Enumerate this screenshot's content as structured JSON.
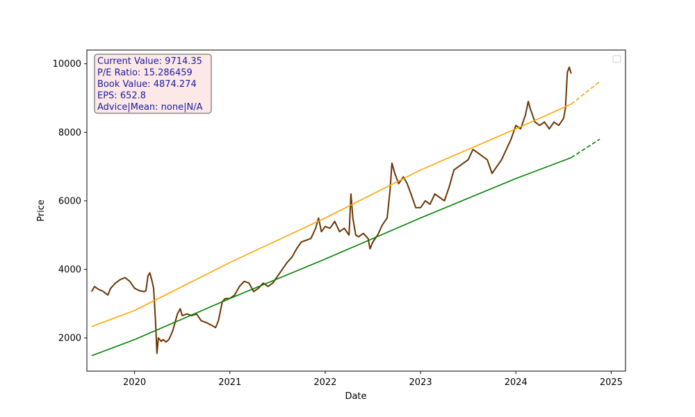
{
  "chart_data": {
    "type": "line",
    "xlabel": "Date",
    "ylabel": "Price",
    "xlim": [
      2019.5,
      2025.15
    ],
    "ylim": [
      1030,
      10400
    ],
    "x_ticks": [
      2020,
      2021,
      2022,
      2023,
      2024,
      2025
    ],
    "x_tick_labels": [
      "2020",
      "2021",
      "2022",
      "2023",
      "2024",
      "2025"
    ],
    "y_ticks": [
      2000,
      4000,
      6000,
      8000,
      10000
    ],
    "y_tick_labels": [
      "2000",
      "4000",
      "6000",
      "8000",
      "10000"
    ],
    "grid": false,
    "legend": "empty box, top-right",
    "info_box": {
      "lines": [
        "Current Value: 9714.35",
        "P/E Ratio: 15.286459",
        "Book Value: 4874.274",
        "EPS: 652.8",
        "Advice|Mean: none|N/A"
      ],
      "text_color": "#1a1aa0",
      "background": "#fde8e8",
      "border": "#555555"
    },
    "series": [
      {
        "style": "solid",
        "color": "#6b3300",
        "points": [
          [
            2019.55,
            3350
          ],
          [
            2019.58,
            3500
          ],
          [
            2019.62,
            3420
          ],
          [
            2019.67,
            3360
          ],
          [
            2019.72,
            3250
          ],
          [
            2019.75,
            3450
          ],
          [
            2019.8,
            3600
          ],
          [
            2019.85,
            3700
          ],
          [
            2019.9,
            3760
          ],
          [
            2019.95,
            3650
          ],
          [
            2020.0,
            3450
          ],
          [
            2020.05,
            3380
          ],
          [
            2020.1,
            3350
          ],
          [
            2020.12,
            3380
          ],
          [
            2020.14,
            3800
          ],
          [
            2020.16,
            3900
          ],
          [
            2020.18,
            3700
          ],
          [
            2020.2,
            3450
          ],
          [
            2020.22,
            2500
          ],
          [
            2020.235,
            1550
          ],
          [
            2020.25,
            2000
          ],
          [
            2020.28,
            1900
          ],
          [
            2020.3,
            1950
          ],
          [
            2020.33,
            1880
          ],
          [
            2020.36,
            1950
          ],
          [
            2020.4,
            2200
          ],
          [
            2020.45,
            2700
          ],
          [
            2020.48,
            2850
          ],
          [
            2020.5,
            2650
          ],
          [
            2020.55,
            2700
          ],
          [
            2020.6,
            2650
          ],
          [
            2020.65,
            2700
          ],
          [
            2020.7,
            2500
          ],
          [
            2020.75,
            2450
          ],
          [
            2020.8,
            2380
          ],
          [
            2020.85,
            2300
          ],
          [
            2020.88,
            2500
          ],
          [
            2020.92,
            3050
          ],
          [
            2020.95,
            3150
          ],
          [
            2021.0,
            3150
          ],
          [
            2021.05,
            3250
          ],
          [
            2021.1,
            3500
          ],
          [
            2021.15,
            3650
          ],
          [
            2021.2,
            3600
          ],
          [
            2021.25,
            3350
          ],
          [
            2021.3,
            3450
          ],
          [
            2021.35,
            3600
          ],
          [
            2021.4,
            3500
          ],
          [
            2021.45,
            3600
          ],
          [
            2021.5,
            3800
          ],
          [
            2021.55,
            4000
          ],
          [
            2021.6,
            4200
          ],
          [
            2021.65,
            4350
          ],
          [
            2021.7,
            4600
          ],
          [
            2021.75,
            4800
          ],
          [
            2021.8,
            4850
          ],
          [
            2021.85,
            4900
          ],
          [
            2021.9,
            5200
          ],
          [
            2021.93,
            5500
          ],
          [
            2021.96,
            5100
          ],
          [
            2022.0,
            5250
          ],
          [
            2022.05,
            5200
          ],
          [
            2022.1,
            5400
          ],
          [
            2022.15,
            5100
          ],
          [
            2022.2,
            5200
          ],
          [
            2022.25,
            5000
          ],
          [
            2022.27,
            6200
          ],
          [
            2022.29,
            5500
          ],
          [
            2022.32,
            5000
          ],
          [
            2022.35,
            4950
          ],
          [
            2022.4,
            5050
          ],
          [
            2022.45,
            4900
          ],
          [
            2022.47,
            4600
          ],
          [
            2022.5,
            4800
          ],
          [
            2022.55,
            5000
          ],
          [
            2022.6,
            5300
          ],
          [
            2022.65,
            5500
          ],
          [
            2022.68,
            6300
          ],
          [
            2022.7,
            7100
          ],
          [
            2022.73,
            6800
          ],
          [
            2022.77,
            6500
          ],
          [
            2022.82,
            6700
          ],
          [
            2022.86,
            6500
          ],
          [
            2022.9,
            6200
          ],
          [
            2022.95,
            5800
          ],
          [
            2023.0,
            5800
          ],
          [
            2023.05,
            6000
          ],
          [
            2023.1,
            5900
          ],
          [
            2023.15,
            6200
          ],
          [
            2023.2,
            6100
          ],
          [
            2023.25,
            6000
          ],
          [
            2023.3,
            6400
          ],
          [
            2023.35,
            6900
          ],
          [
            2023.4,
            7000
          ],
          [
            2023.45,
            7100
          ],
          [
            2023.5,
            7200
          ],
          [
            2023.55,
            7500
          ],
          [
            2023.6,
            7400
          ],
          [
            2023.65,
            7300
          ],
          [
            2023.7,
            7200
          ],
          [
            2023.75,
            6800
          ],
          [
            2023.8,
            7000
          ],
          [
            2023.85,
            7200
          ],
          [
            2023.9,
            7500
          ],
          [
            2023.95,
            7800
          ],
          [
            2024.0,
            8200
          ],
          [
            2024.05,
            8100
          ],
          [
            2024.1,
            8500
          ],
          [
            2024.13,
            8900
          ],
          [
            2024.15,
            8700
          ],
          [
            2024.2,
            8300
          ],
          [
            2024.25,
            8200
          ],
          [
            2024.3,
            8300
          ],
          [
            2024.35,
            8100
          ],
          [
            2024.4,
            8300
          ],
          [
            2024.45,
            8200
          ],
          [
            2024.5,
            8400
          ],
          [
            2024.52,
            8700
          ],
          [
            2024.54,
            9750
          ],
          [
            2024.56,
            9900
          ],
          [
            2024.58,
            9714
          ]
        ]
      },
      {
        "style": "solid",
        "color": "#ffa500",
        "points": [
          [
            2019.55,
            2330
          ],
          [
            2020.0,
            2800
          ],
          [
            2021.0,
            4200
          ],
          [
            2022.0,
            5500
          ],
          [
            2023.0,
            6900
          ],
          [
            2024.0,
            8100
          ],
          [
            2024.58,
            8820
          ]
        ]
      },
      {
        "style": "dashed",
        "color": "#ffa500",
        "points": [
          [
            2024.58,
            8820
          ],
          [
            2024.88,
            9480
          ]
        ]
      },
      {
        "style": "solid",
        "color": "#008000",
        "points": [
          [
            2019.55,
            1480
          ],
          [
            2020.0,
            1950
          ],
          [
            2021.0,
            3150
          ],
          [
            2022.0,
            4300
          ],
          [
            2023.0,
            5500
          ],
          [
            2024.0,
            6650
          ],
          [
            2024.58,
            7260
          ]
        ]
      },
      {
        "style": "dashed",
        "color": "#008000",
        "points": [
          [
            2024.58,
            7260
          ],
          [
            2024.88,
            7800
          ]
        ]
      }
    ]
  }
}
